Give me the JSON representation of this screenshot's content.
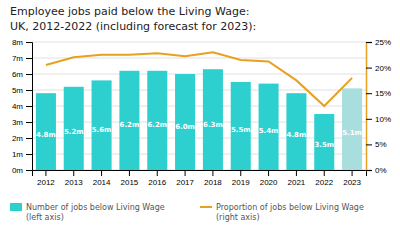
{
  "chart_data": {
    "type": "bar",
    "title": "Employee jobs paid below the Living Wage:",
    "subtitle": "UK, 2012-2022 (including forecast for 2023):",
    "categories": [
      "2012",
      "2013",
      "2014",
      "2015",
      "2016",
      "2017",
      "2018",
      "2019",
      "2020",
      "2021",
      "2022",
      "2023"
    ],
    "series": [
      {
        "name": "Number of jobs below Living Wage\n(left axis)",
        "type": "bar",
        "color": "#2ecfcf",
        "colors": [
          "#2ecfcf",
          "#2ecfcf",
          "#2ecfcf",
          "#2ecfcf",
          "#2ecfcf",
          "#2ecfcf",
          "#2ecfcf",
          "#2ecfcf",
          "#2ecfcf",
          "#2ecfcf",
          "#2ecfcf",
          "#a8dede"
        ],
        "values": [
          4.8,
          5.2,
          5.6,
          6.2,
          6.2,
          6.0,
          6.3,
          5.5,
          5.4,
          4.8,
          3.5,
          5.1
        ],
        "value_labels": [
          "4.8m",
          "5.2m",
          "5.6m",
          "6.2m",
          "6.2m",
          "6.0m",
          "6.3m",
          "5.5m",
          "5.4m",
          "4.8m",
          "3.5m",
          "5.1m"
        ],
        "data_labels": true
      },
      {
        "name": "Proportion of jobs below Living Wage\n(right axis)",
        "type": "line",
        "color": "#e8a020",
        "axis": "y2",
        "values": [
          20.5,
          22.0,
          22.5,
          22.5,
          22.8,
          22.2,
          23.0,
          21.5,
          21.2,
          17.5,
          12.5,
          18.0
        ]
      }
    ],
    "ylim": [
      0,
      8
    ],
    "yticks": [
      {
        "value": 0,
        "label": "0m"
      },
      {
        "value": 1,
        "label": "1m"
      },
      {
        "value": 2,
        "label": "2m"
      },
      {
        "value": 3,
        "label": "3m"
      },
      {
        "value": 4,
        "label": "4m"
      },
      {
        "value": 5,
        "label": "5m"
      },
      {
        "value": 6,
        "label": "6m"
      },
      {
        "value": 7,
        "label": "7m"
      },
      {
        "value": 8,
        "label": "8m"
      }
    ],
    "y2lim": [
      0,
      25
    ],
    "y2ticks": [
      {
        "value": 0,
        "label": "0%"
      },
      {
        "value": 5,
        "label": "5%"
      },
      {
        "value": 10,
        "label": "10%"
      },
      {
        "value": 15,
        "label": "15%"
      },
      {
        "value": 20,
        "label": "20%"
      },
      {
        "value": 25,
        "label": "25%"
      }
    ],
    "grid": true,
    "legend": "lower left"
  }
}
